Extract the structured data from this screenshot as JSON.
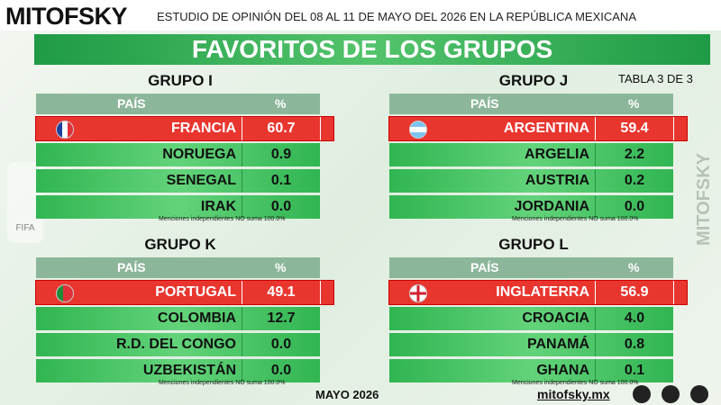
{
  "header": {
    "brand": "MITOFSKY",
    "subtitle": "ESTUDIO DE OPINIÓN DEL 08 AL 11 DE MAYO DEL 2026 EN LA REPÚBLICA MEXICANA",
    "title": "FAVORITOS DE LOS GRUPOS",
    "table_note": "TABLA 3 DE 3"
  },
  "groups": [
    {
      "name": "GRUPO I",
      "columns": [
        "PAÍS",
        "%"
      ],
      "rows": [
        [
          "FRANCIA",
          "60.7"
        ],
        [
          "NORUEGA",
          "0.9"
        ],
        [
          "SENEGAL",
          "0.1"
        ],
        [
          "IRAK",
          "0.0"
        ]
      ],
      "note": "Menciones independientes NO suma 100.0%"
    },
    {
      "name": "GRUPO J",
      "columns": [
        "PAÍS",
        "%"
      ],
      "rows": [
        [
          "ARGENTINA",
          "59.4"
        ],
        [
          "ARGELIA",
          "2.2"
        ],
        [
          "AUSTRIA",
          "0.2"
        ],
        [
          "JORDANIA",
          "0.0"
        ]
      ],
      "note": "Menciones independientes NO suma 100.0%"
    },
    {
      "name": "GRUPO K",
      "columns": [
        "PAÍS",
        "%"
      ],
      "rows": [
        [
          "PORTUGAL",
          "49.1"
        ],
        [
          "COLOMBIA",
          "12.7"
        ],
        [
          "R.D. DEL CONGO",
          "0.0"
        ],
        [
          "UZBEKISTÁN",
          "0.0"
        ]
      ],
      "note": "Menciones independientes NO suma 100.0%"
    },
    {
      "name": "GRUPO L",
      "columns": [
        "PAÍS",
        "%"
      ],
      "rows": [
        [
          "INGLATERRA",
          "56.9"
        ],
        [
          "CROACIA",
          "4.0"
        ],
        [
          "PANAMÁ",
          "0.8"
        ],
        [
          "GHANA",
          "0.1"
        ]
      ],
      "note": "Menciones independientes NO suma 100.0%"
    }
  ],
  "side": {
    "logo": "FIFA",
    "watermark": "MITOFSKY"
  },
  "footer": {
    "date": "MAYO 2026",
    "site": "mitofsky.mx"
  }
}
